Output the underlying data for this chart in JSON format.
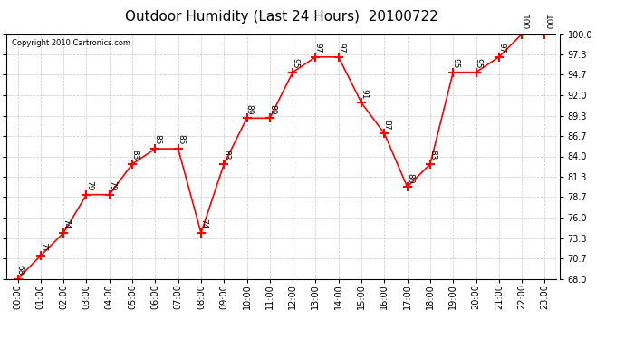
{
  "title": "Outdoor Humidity (Last 24 Hours)  20100722",
  "copyright": "Copyright 2010 Cartronics.com",
  "x_labels": [
    "00:00",
    "01:00",
    "02:00",
    "03:00",
    "04:00",
    "05:00",
    "06:00",
    "07:00",
    "08:00",
    "09:00",
    "10:00",
    "11:00",
    "12:00",
    "13:00",
    "14:00",
    "15:00",
    "16:00",
    "17:00",
    "18:00",
    "19:00",
    "20:00",
    "21:00",
    "22:00",
    "23:00"
  ],
  "x_values": [
    0,
    1,
    2,
    3,
    4,
    5,
    6,
    7,
    8,
    9,
    10,
    11,
    12,
    13,
    14,
    15,
    16,
    17,
    18,
    19,
    20,
    21,
    22,
    23
  ],
  "y_values": [
    68,
    71,
    74,
    79,
    79,
    83,
    85,
    85,
    74,
    83,
    89,
    89,
    95,
    97,
    97,
    91,
    87,
    80,
    83,
    95,
    95,
    97,
    100,
    100
  ],
  "point_labels": [
    "68",
    "71",
    "74",
    "79",
    "79",
    "83",
    "85",
    "85",
    "74",
    "83",
    "89",
    "89",
    "95",
    "97",
    "97",
    "91",
    "87",
    "80",
    "83",
    "95",
    "95",
    "97",
    "100",
    "100"
  ],
  "line_color": "red",
  "marker_color": "red",
  "marker": "+",
  "ylim": [
    68.0,
    100.0
  ],
  "ytick_values": [
    68.0,
    70.7,
    73.3,
    76.0,
    78.7,
    81.3,
    84.0,
    86.7,
    89.3,
    92.0,
    94.7,
    97.3,
    100.0
  ],
  "ytick_labels": [
    "68.0",
    "70.7",
    "73.3",
    "76.0",
    "78.7",
    "81.3",
    "84.0",
    "86.7",
    "89.3",
    "92.0",
    "94.7",
    "97.3",
    "100.0"
  ],
  "background_color": "white",
  "grid_color": "#c8c8c8",
  "title_fontsize": 11,
  "label_fontsize": 6.5,
  "tick_fontsize": 7,
  "copyright_fontsize": 6
}
